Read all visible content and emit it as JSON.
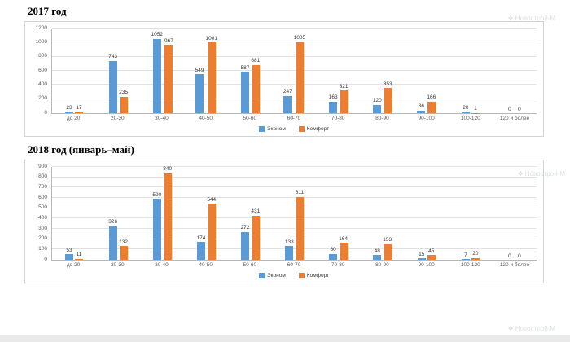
{
  "watermark": {
    "text": "Новострой-М"
  },
  "chart_data": [
    {
      "type": "bar",
      "title": "2017 год",
      "categories": [
        "до 20",
        "20-30",
        "30-40",
        "40-50",
        "50-60",
        "60-70",
        "70-80",
        "80-90",
        "90-100",
        "100-120",
        "120 и более"
      ],
      "series": [
        {
          "name": "Эконом",
          "color": "#5B9BD5",
          "values": [
            23,
            743,
            1052,
            549,
            587,
            247,
            163,
            120,
            36,
            20,
            0
          ]
        },
        {
          "name": "Комфорт",
          "color": "#ED7D31",
          "values": [
            17,
            235,
            967,
            1001,
            681,
            1005,
            321,
            353,
            166,
            1,
            0
          ]
        }
      ],
      "xlabel": "",
      "ylabel": "",
      "ylim": [
        0,
        1200
      ],
      "ystep": 200,
      "grid": true,
      "legend_position": "bottom"
    },
    {
      "type": "bar",
      "title": "2018 год (январь–май)",
      "categories": [
        "до 20",
        "20-30",
        "30-40",
        "40-50",
        "50-60",
        "60-70",
        "70-80",
        "80-90",
        "90-100",
        "100-120",
        "120 и более"
      ],
      "series": [
        {
          "name": "Эконом",
          "color": "#5B9BD5",
          "values": [
            53,
            326,
            590,
            174,
            272,
            133,
            60,
            48,
            15,
            7,
            0
          ]
        },
        {
          "name": "Комфорт",
          "color": "#ED7D31",
          "values": [
            11,
            132,
            840,
            544,
            431,
            611,
            164,
            153,
            45,
            20,
            0
          ]
        }
      ],
      "xlabel": "",
      "ylabel": "",
      "ylim": [
        0,
        900
      ],
      "ystep": 100,
      "grid": true,
      "legend_position": "bottom"
    }
  ]
}
